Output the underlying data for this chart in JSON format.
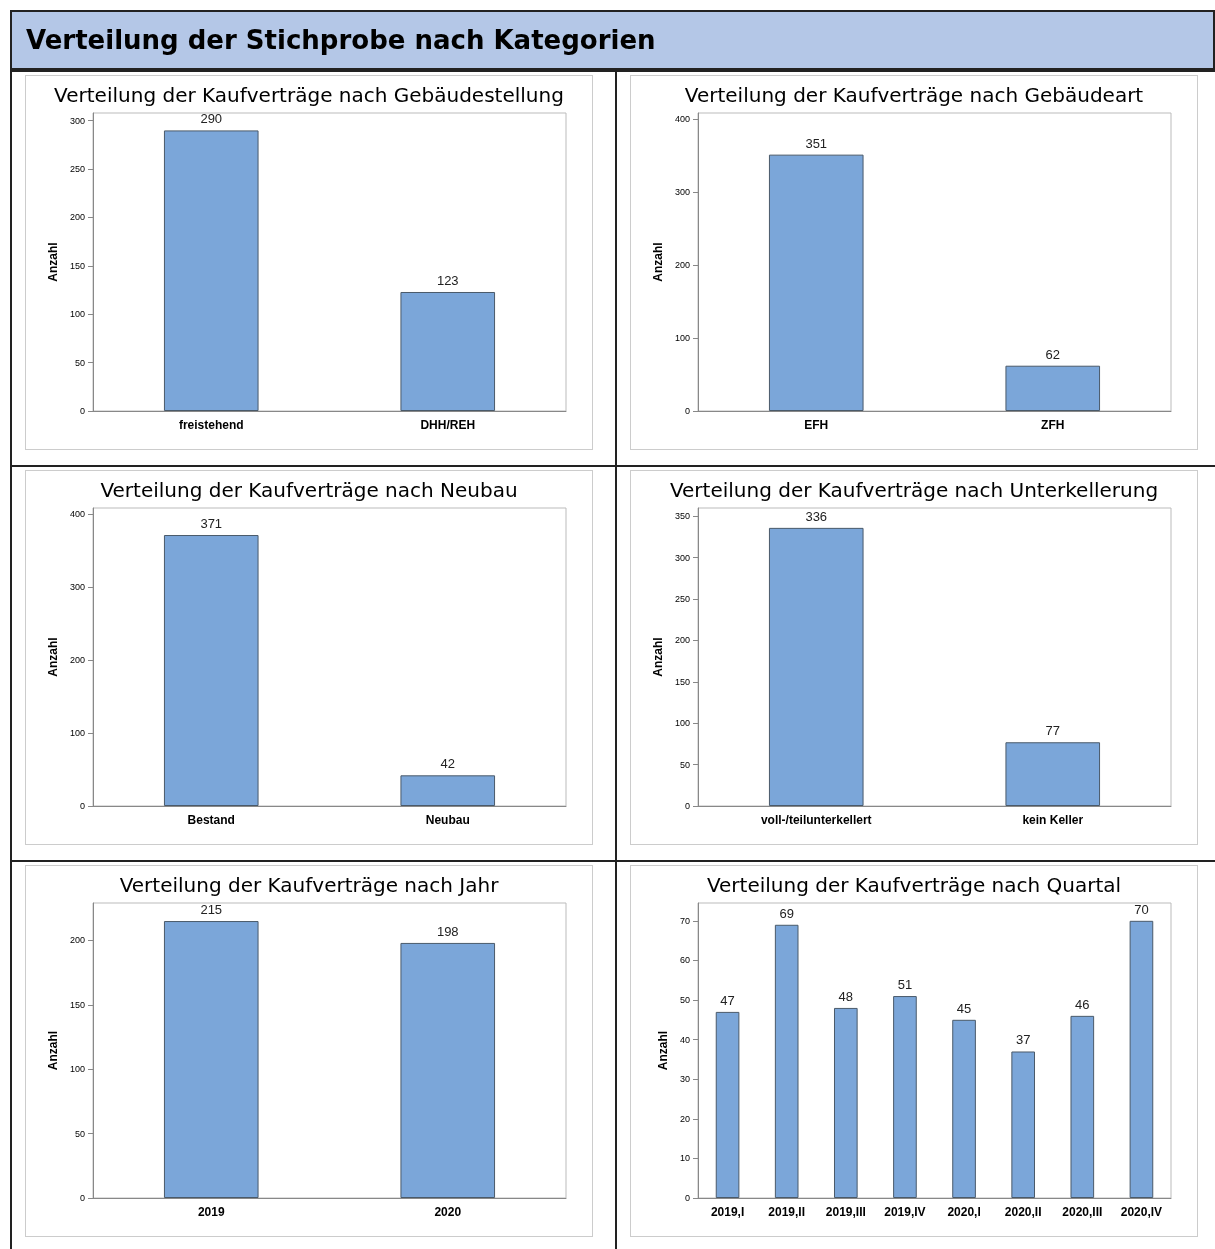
{
  "chart_data": [
    {
      "type": "other",
      "title": "Verteilung der Stichprobe nach Kategorien"
    },
    {
      "type": "bar",
      "title": "Verteilung der Kaufverträge nach Gebäudestellung",
      "ylabel": "Anzahl",
      "categories": [
        "freistehend",
        "DHH/REH"
      ],
      "values": [
        290,
        123
      ],
      "color": "#7ba6d9",
      "ylim": [
        0,
        308
      ],
      "yticks": [
        0,
        50,
        100,
        150,
        200,
        250,
        300
      ],
      "data_labels": true
    },
    {
      "type": "bar",
      "title": "Verteilung der Kaufverträge nach Gebäudeart",
      "ylabel": "Anzahl",
      "categories": [
        "EFH",
        "ZFH"
      ],
      "values": [
        351,
        62
      ],
      "color": "#7ba6d9",
      "ylim": [
        0,
        408
      ],
      "yticks": [
        0,
        100,
        200,
        300,
        400
      ],
      "data_labels": true
    },
    {
      "type": "bar",
      "title": "Verteilung der Kaufverträge nach Neubau",
      "ylabel": "Anzahl",
      "categories": [
        "Bestand",
        "Neubau"
      ],
      "values": [
        371,
        42
      ],
      "color": "#7ba6d9",
      "ylim": [
        0,
        408
      ],
      "yticks": [
        0,
        100,
        200,
        300,
        400
      ],
      "data_labels": true
    },
    {
      "type": "bar",
      "title": "Verteilung der Kaufverträge nach Unterkellerung",
      "ylabel": "Anzahl",
      "categories": [
        "voll-/teilunterkellert",
        "kein Keller"
      ],
      "values": [
        336,
        77
      ],
      "color": "#7ba6d9",
      "ylim": [
        0,
        360
      ],
      "yticks": [
        0,
        50,
        100,
        150,
        200,
        250,
        300,
        350
      ],
      "data_labels": true
    },
    {
      "type": "bar",
      "title": "Verteilung der Kaufverträge nach Jahr",
      "ylabel": "Anzahl",
      "categories": [
        "2019",
        "2020"
      ],
      "values": [
        215,
        198
      ],
      "color": "#7ba6d9",
      "ylim": [
        0,
        229
      ],
      "yticks": [
        0,
        50,
        100,
        150,
        200
      ],
      "data_labels": true
    },
    {
      "type": "bar",
      "title": "Verteilung der Kaufverträge nach Quartal",
      "ylabel": "Anzahl",
      "categories": [
        "2019,I",
        "2019,II",
        "2019,III",
        "2019,IV",
        "2020,I",
        "2020,II",
        "2020,III",
        "2020,IV"
      ],
      "values": [
        47,
        69,
        48,
        51,
        45,
        37,
        46,
        70
      ],
      "color": "#7ba6d9",
      "ylim": [
        0,
        74.5
      ],
      "yticks": [
        0,
        10,
        20,
        30,
        40,
        50,
        60,
        70
      ],
      "data_labels": true
    }
  ]
}
